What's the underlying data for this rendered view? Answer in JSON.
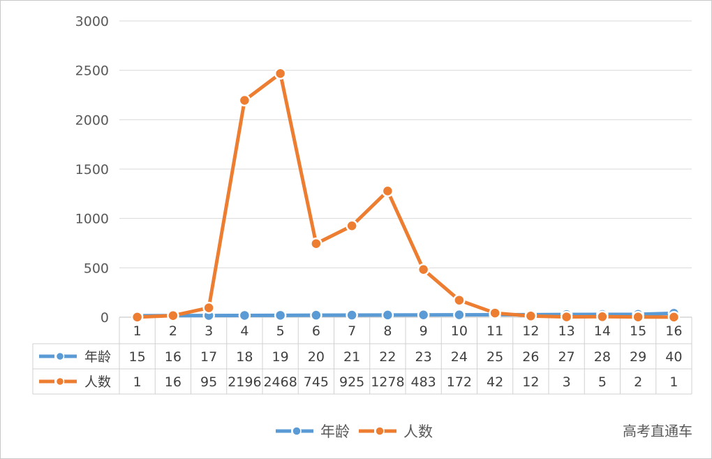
{
  "chart_data": {
    "type": "line",
    "categories": [
      "1",
      "2",
      "3",
      "4",
      "5",
      "6",
      "7",
      "8",
      "9",
      "10",
      "11",
      "12",
      "13",
      "14",
      "15",
      "16"
    ],
    "series": [
      {
        "name": "年龄",
        "color": "#5b9bd5",
        "values": [
          15,
          16,
          17,
          18,
          19,
          20,
          21,
          22,
          23,
          24,
          25,
          26,
          27,
          28,
          29,
          40
        ]
      },
      {
        "name": "人数",
        "color": "#ed7d31",
        "values": [
          1,
          16,
          95,
          2196,
          2468,
          745,
          925,
          1278,
          483,
          172,
          42,
          12,
          3,
          5,
          2,
          1
        ]
      }
    ],
    "ylim": [
      0,
      3000
    ],
    "yticks": [
      "0",
      "500",
      "1000",
      "1500",
      "2000",
      "2500",
      "3000"
    ],
    "grid": true,
    "legend": "bottom",
    "data_table": true
  },
  "watermark": "高考直通车"
}
